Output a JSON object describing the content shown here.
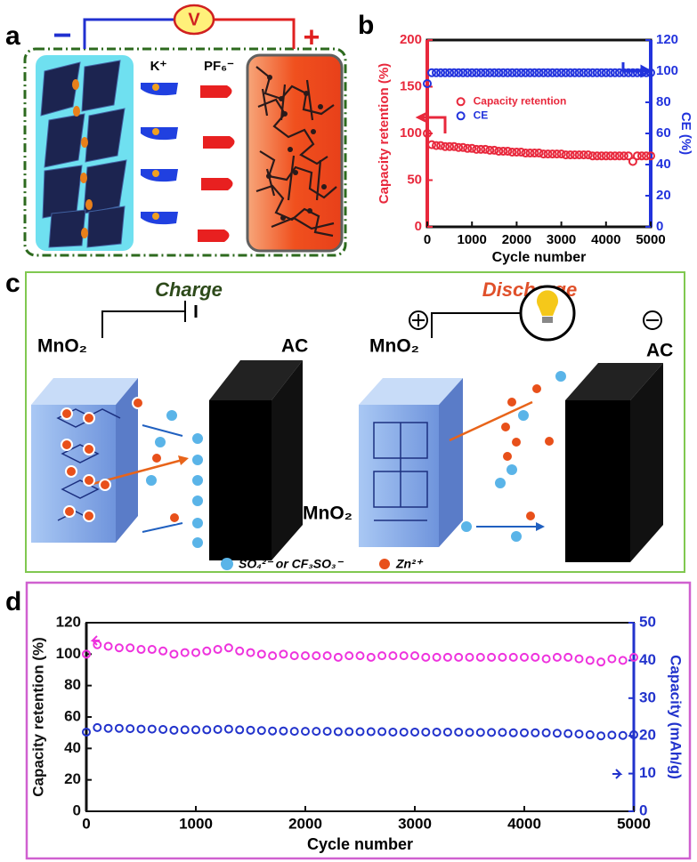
{
  "figure": {
    "panel_labels": [
      "a",
      "b",
      "c",
      "d"
    ],
    "a": {
      "voltmeter": "V",
      "minus": "−",
      "plus": "+",
      "cation": "K⁺",
      "anion": "PF₆⁻"
    },
    "c": {
      "charge": {
        "title": "Charge",
        "left_electrode": "MnO₂",
        "right_electrode": "AC",
        "block_label": "MnO₂"
      },
      "discharge": {
        "title": "Discharge",
        "left_electrode": "MnO₂",
        "right_electrode": "AC"
      },
      "legend": {
        "anion": "SO₄²⁻ or CF₃SO₃⁻",
        "cation": "Zn²⁺"
      }
    }
  },
  "chart_data": [
    {
      "type": "scatter",
      "xlabel": "Cycle number",
      "ylabel": "Capacity retention (%)",
      "y2label": "CE (%)",
      "xlim": [
        0,
        5000
      ],
      "xticks": [
        0,
        1000,
        2000,
        3000,
        4000,
        5000
      ],
      "ylim": [
        0,
        200
      ],
      "yticks": [
        0,
        50,
        100,
        150,
        200
      ],
      "y2lim": [
        0,
        120
      ],
      "y2ticks": [
        0,
        20,
        40,
        60,
        80,
        100,
        120
      ],
      "legend": "center",
      "x": [
        0,
        100,
        200,
        300,
        400,
        500,
        600,
        700,
        800,
        900,
        1000,
        1100,
        1200,
        1300,
        1400,
        1500,
        1600,
        1700,
        1800,
        1900,
        2000,
        2100,
        2200,
        2300,
        2400,
        2500,
        2600,
        2700,
        2800,
        2900,
        3000,
        3100,
        3200,
        3300,
        3400,
        3500,
        3600,
        3700,
        3800,
        3900,
        4000,
        4100,
        4200,
        4300,
        4400,
        4500,
        4600,
        4700,
        4800,
        4900,
        5000
      ],
      "series": [
        {
          "name": "Capacity retention",
          "color": "#e8283c",
          "values": [
            100,
            88,
            87,
            87,
            86,
            86,
            86,
            85,
            85,
            84,
            84,
            83,
            83,
            83,
            82,
            82,
            81,
            81,
            81,
            80,
            80,
            80,
            79,
            79,
            79,
            79,
            78,
            78,
            78,
            78,
            78,
            77,
            77,
            77,
            77,
            77,
            77,
            76,
            76,
            76,
            76,
            76,
            76,
            76,
            76,
            76,
            70,
            76,
            76,
            76,
            76
          ]
        },
        {
          "name": "CE",
          "color": "#2233dd",
          "axis": "y2",
          "values": [
            92,
            99,
            99,
            99,
            99,
            99,
            99,
            99,
            99,
            99,
            99,
            99,
            99,
            99,
            99,
            99,
            99,
            99,
            99,
            99,
            99,
            99,
            99,
            99,
            99,
            99,
            99,
            99,
            99,
            99,
            99,
            99,
            99,
            99,
            99,
            99,
            99,
            99,
            99,
            99,
            99,
            99,
            99,
            99,
            99,
            99,
            99,
            99,
            99,
            99,
            99
          ]
        }
      ]
    },
    {
      "type": "scatter",
      "xlabel": "Cycle number",
      "ylabel": "Capacity retention (%)",
      "y2label": "Capacity (mAh/g)",
      "xlim": [
        0,
        5000
      ],
      "xticks": [
        0,
        1000,
        2000,
        3000,
        4000,
        5000
      ],
      "ylim": [
        0,
        120
      ],
      "yticks": [
        0,
        20,
        40,
        60,
        80,
        100,
        120
      ],
      "y2lim": [
        0,
        50
      ],
      "y2ticks": [
        0,
        10,
        20,
        30,
        40,
        50
      ],
      "x": [
        0,
        100,
        200,
        300,
        400,
        500,
        600,
        700,
        800,
        900,
        1000,
        1100,
        1200,
        1300,
        1400,
        1500,
        1600,
        1700,
        1800,
        1900,
        2000,
        2100,
        2200,
        2300,
        2400,
        2500,
        2600,
        2700,
        2800,
        2900,
        3000,
        3100,
        3200,
        3300,
        3400,
        3500,
        3600,
        3700,
        3800,
        3900,
        4000,
        4100,
        4200,
        4300,
        4400,
        4500,
        4600,
        4700,
        4800,
        4900,
        5000
      ],
      "series": [
        {
          "color": "#ee33dd",
          "values": [
            100,
            106,
            105,
            104,
            104,
            103,
            103,
            102,
            100,
            101,
            101,
            102,
            103,
            104,
            102,
            101,
            100,
            99,
            100,
            99,
            99,
            99,
            99,
            98,
            99,
            99,
            98,
            99,
            99,
            99,
            99,
            98,
            98,
            98,
            98,
            98,
            98,
            98,
            98,
            98,
            98,
            98,
            97,
            98,
            98,
            97,
            96,
            95,
            97,
            96,
            98
          ]
        },
        {
          "color": "#2233cc",
          "axis": "y2",
          "values": [
            21,
            22.2,
            22,
            22,
            21.9,
            21.8,
            21.8,
            21.7,
            21.5,
            21.6,
            21.6,
            21.6,
            21.7,
            21.8,
            21.6,
            21.5,
            21.4,
            21.3,
            21.3,
            21.2,
            21.2,
            21.2,
            21.2,
            21.1,
            21.1,
            21.1,
            21.1,
            21.1,
            21,
            21,
            21,
            21,
            21,
            21,
            21,
            20.9,
            20.9,
            20.9,
            20.9,
            20.8,
            20.8,
            20.8,
            20.8,
            20.7,
            20.6,
            20.5,
            20.3,
            20,
            20.2,
            20.1,
            20.3
          ]
        }
      ]
    }
  ]
}
